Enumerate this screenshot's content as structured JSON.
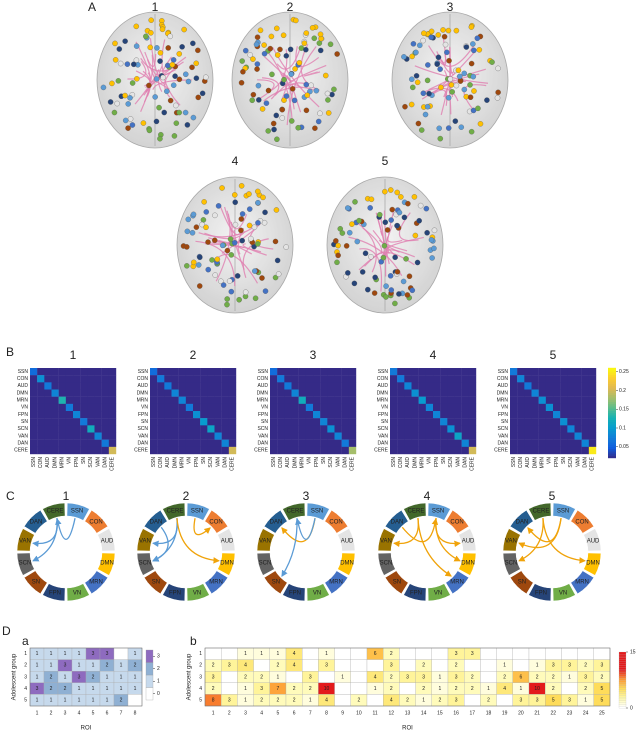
{
  "networks": [
    "SSN",
    "CON",
    "AUD",
    "DMN",
    "MRN",
    "VN",
    "FPN",
    "SN",
    "SCN",
    "VAN",
    "DAN",
    "CERE"
  ],
  "network_colors": [
    "#5b9bd5",
    "#ed7d31",
    "#e4e4e4",
    "#ffc000",
    "#4472c4",
    "#70ad47",
    "#264478",
    "#9e480e",
    "#636363",
    "#997300",
    "#255e91",
    "#43682b"
  ],
  "panel_a": {
    "label": "A",
    "titles": [
      "1",
      "2",
      "3",
      "4",
      "5"
    ]
  },
  "panel_b": {
    "label": "B",
    "titles": [
      "1",
      "2",
      "3",
      "4",
      "5"
    ],
    "clim": [
      0.02,
      0.26
    ],
    "colorbar_ticks": [
      0.05,
      0.1,
      0.15,
      0.2,
      0.25
    ],
    "diagonals": [
      [
        0.06,
        0.09,
        0.07,
        0.08,
        0.13,
        0.07,
        0.08,
        0.07,
        0.12,
        0.08,
        0.07,
        0.2
      ],
      [
        0.06,
        0.07,
        0.07,
        0.08,
        0.08,
        0.07,
        0.09,
        0.1,
        0.11,
        0.08,
        0.08,
        0.2
      ],
      [
        0.06,
        0.07,
        0.07,
        0.08,
        0.12,
        0.07,
        0.08,
        0.08,
        0.09,
        0.08,
        0.07,
        0.18
      ],
      [
        0.07,
        0.07,
        0.08,
        0.09,
        0.1,
        0.08,
        0.08,
        0.08,
        0.09,
        0.11,
        0.08,
        0.2
      ],
      [
        0.07,
        0.08,
        0.07,
        0.08,
        0.09,
        0.09,
        0.08,
        0.09,
        0.08,
        0.08,
        0.08,
        0.25
      ]
    ]
  },
  "panel_c": {
    "label": "C",
    "titles": [
      "1",
      "2",
      "3",
      "4",
      "5"
    ]
  },
  "panel_d": {
    "label": "D",
    "a": {
      "label": "a",
      "ylabel": "Adolescent group",
      "xlabel": "ROI",
      "row_labels": [
        "1",
        "2",
        "3",
        "4",
        "5"
      ],
      "columns": [
        1,
        2,
        3,
        4,
        5,
        6,
        7,
        8
      ],
      "colorbar_ticks": [
        0,
        1,
        2,
        3
      ],
      "colors": [
        "#ffffff",
        "#c6d9ec",
        "#8fb0d3",
        "#8e6bbf"
      ],
      "values": [
        [
          1,
          1,
          1,
          1,
          3,
          3,
          null,
          1
        ],
        [
          1,
          1,
          3,
          1,
          1,
          2,
          1,
          2
        ],
        [
          1,
          2,
          1,
          3,
          2,
          1,
          1,
          1
        ],
        [
          3,
          2,
          2,
          1,
          1,
          1,
          1,
          1
        ],
        [
          1,
          1,
          1,
          1,
          1,
          1,
          2,
          null
        ]
      ]
    },
    "b": {
      "label": "b",
      "ylabel": "Adolescent group",
      "xlabel": "ROI",
      "row_labels": [
        "1",
        "2",
        "3",
        "4",
        "5"
      ],
      "columns": [
        1,
        2,
        3,
        4,
        5,
        6,
        7,
        8,
        9,
        10,
        11,
        12,
        13,
        14,
        15,
        16,
        17,
        18,
        19,
        20,
        21,
        22,
        23,
        24,
        25
      ],
      "clim": [
        0,
        15
      ],
      "colorbar_ticks": [
        0,
        15
      ],
      "values": [
        [
          null,
          null,
          1,
          1,
          1,
          4,
          null,
          1,
          null,
          null,
          6,
          2,
          null,
          null,
          null,
          3,
          3,
          null,
          null,
          null,
          null,
          null,
          null,
          null,
          null
        ],
        [
          2,
          3,
          4,
          null,
          2,
          4,
          null,
          3,
          null,
          null,
          null,
          3,
          null,
          2,
          null,
          2,
          null,
          null,
          1,
          null,
          1,
          3,
          3,
          2,
          3
        ],
        [
          3,
          null,
          2,
          2,
          1,
          null,
          3,
          null,
          1,
          null,
          4,
          2,
          3,
          3,
          1,
          3,
          2,
          null,
          2,
          6,
          2,
          2,
          1,
          3,
          2
        ],
        [
          2,
          null,
          1,
          3,
          7,
          2,
          2,
          10,
          null,
          null,
          1,
          2,
          null,
          2,
          1,
          2,
          2,
          1,
          4,
          1,
          10,
          2,
          null,
          2,
          5
        ],
        [
          8,
          3,
          1,
          2,
          2,
          2,
          1,
          4,
          null,
          2,
          null,
          4,
          2,
          1,
          2,
          3,
          null,
          2,
          null,
          3,
          3,
          5,
          3,
          1,
          5
        ]
      ]
    }
  }
}
